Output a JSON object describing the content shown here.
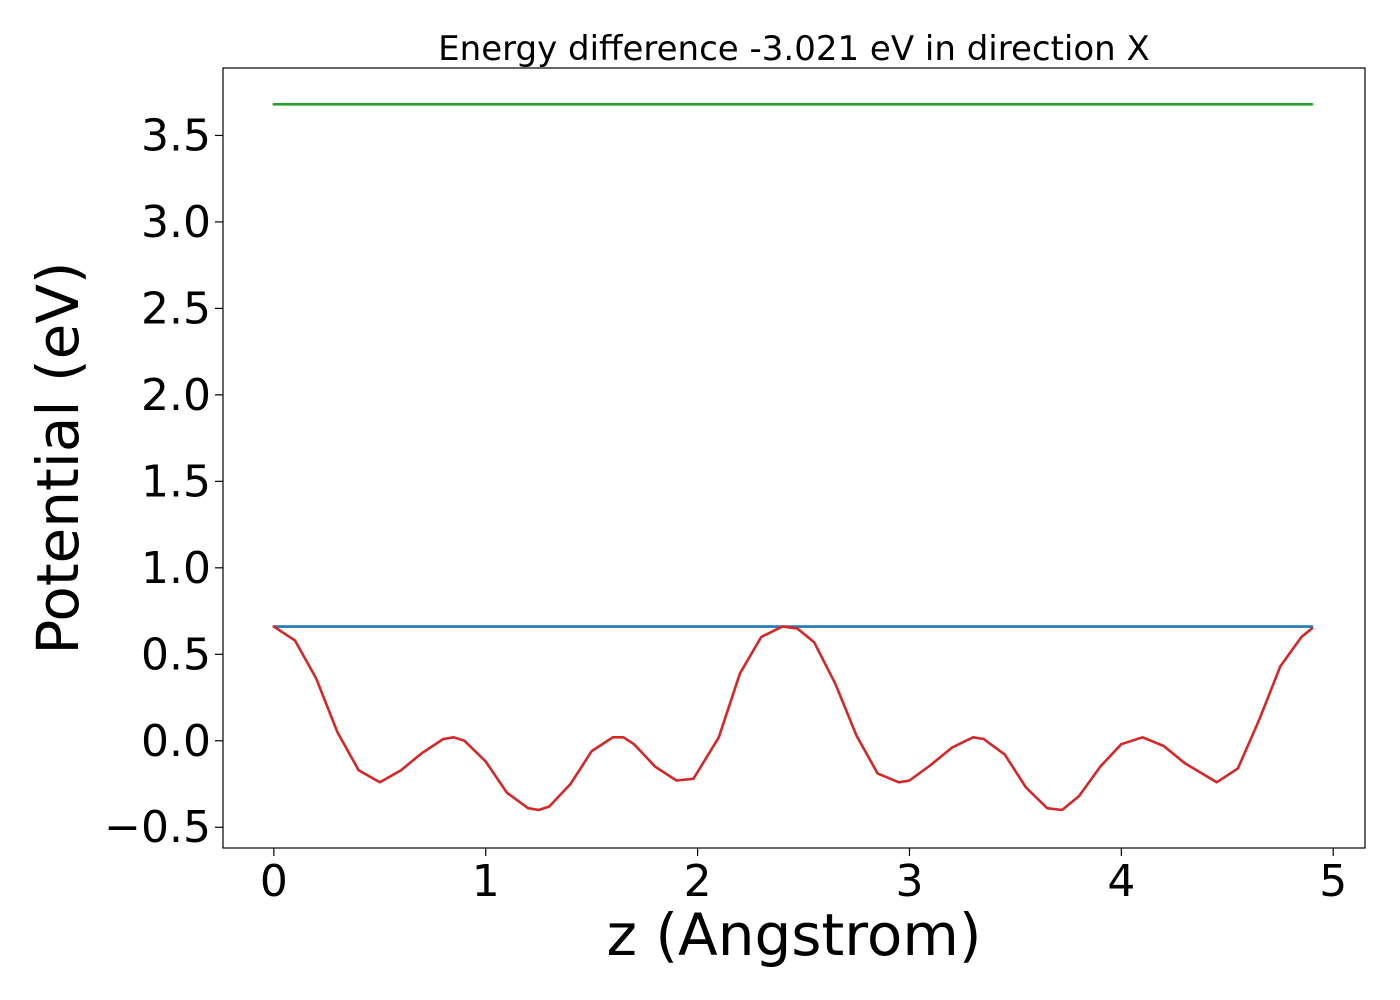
{
  "chart_data": {
    "type": "line",
    "title": "Energy difference -3.021 eV in direction X",
    "xlabel": "z (Angstrom)",
    "ylabel": "Potential (eV)",
    "xlim": [
      -0.24,
      5.15
    ],
    "ylim": [
      -0.62,
      3.89
    ],
    "x_ticks": [
      0,
      1,
      2,
      3,
      4,
      5
    ],
    "x_tick_labels": [
      "0",
      "1",
      "2",
      "3",
      "4",
      "5"
    ],
    "y_ticks": [
      -0.5,
      0.0,
      0.5,
      1.0,
      1.5,
      2.0,
      2.5,
      3.0,
      3.5
    ],
    "y_tick_labels": [
      "−0.5",
      "0.0",
      "0.5",
      "1.0",
      "1.5",
      "2.0",
      "2.5",
      "3.0",
      "3.5"
    ],
    "grid": false,
    "series": [
      {
        "color": "#2ca02c",
        "x": [
          0,
          4.9
        ],
        "y": [
          3.68,
          3.68
        ]
      },
      {
        "color": "#1f77b4",
        "x": [
          0,
          4.9
        ],
        "y": [
          0.66,
          0.66
        ]
      },
      {
        "color": "#d62728",
        "x": [
          0.0,
          0.1,
          0.2,
          0.3,
          0.4,
          0.5,
          0.6,
          0.7,
          0.8,
          0.85,
          0.9,
          1.0,
          1.1,
          1.2,
          1.25,
          1.3,
          1.4,
          1.5,
          1.6,
          1.65,
          1.7,
          1.8,
          1.9,
          1.98,
          2.1,
          2.2,
          2.3,
          2.4,
          2.47,
          2.55,
          2.65,
          2.75,
          2.85,
          2.95,
          3.0,
          3.1,
          3.2,
          3.3,
          3.35,
          3.45,
          3.55,
          3.65,
          3.72,
          3.8,
          3.9,
          4.0,
          4.1,
          4.2,
          4.3,
          4.45,
          4.55,
          4.65,
          4.75,
          4.85,
          4.9
        ],
        "y": [
          0.66,
          0.58,
          0.36,
          0.05,
          -0.17,
          -0.24,
          -0.17,
          -0.07,
          0.01,
          0.02,
          0.0,
          -0.12,
          -0.3,
          -0.39,
          -0.4,
          -0.38,
          -0.25,
          -0.06,
          0.02,
          0.02,
          -0.02,
          -0.15,
          -0.23,
          -0.22,
          0.02,
          0.39,
          0.6,
          0.66,
          0.65,
          0.57,
          0.33,
          0.03,
          -0.19,
          -0.24,
          -0.23,
          -0.14,
          -0.04,
          0.02,
          0.01,
          -0.08,
          -0.27,
          -0.39,
          -0.4,
          -0.32,
          -0.15,
          -0.02,
          0.02,
          -0.03,
          -0.13,
          -0.24,
          -0.16,
          0.12,
          0.43,
          0.6,
          0.65
        ]
      }
    ]
  }
}
